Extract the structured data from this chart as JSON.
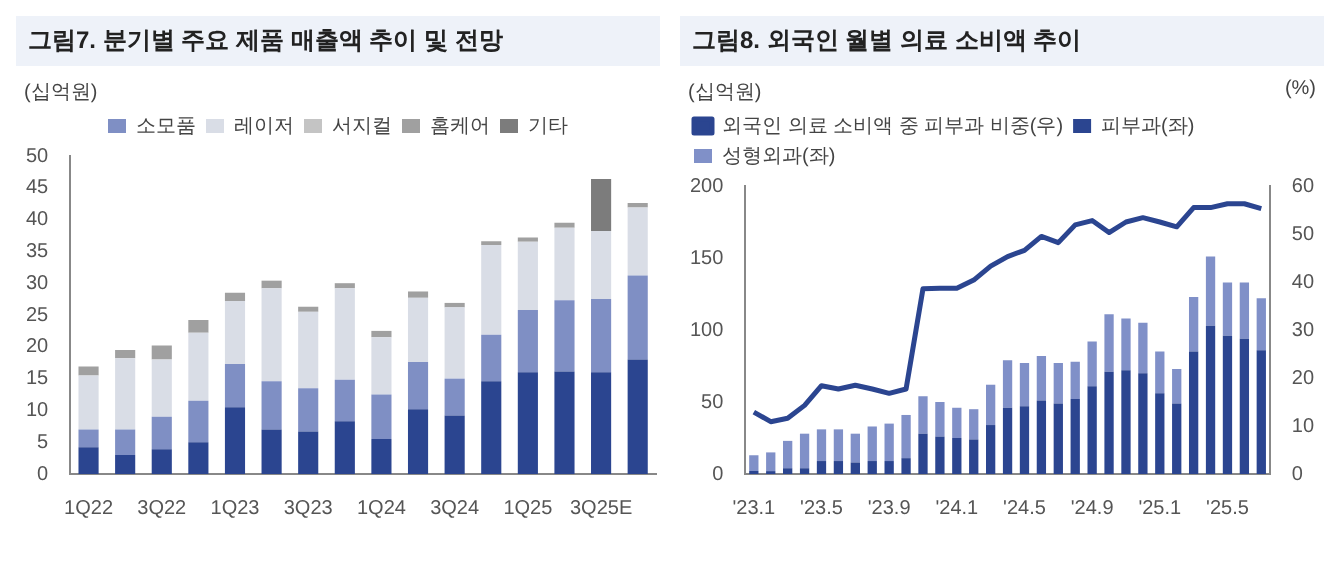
{
  "chart_data": [
    {
      "type": "bar",
      "title": "그림7. 분기별 주요 제품 매출액 추이 및 전망",
      "ylabel": "(십억원)",
      "stacked": true,
      "legend": "top",
      "grid": false,
      "categories": [
        "1Q22",
        null,
        "3Q22",
        null,
        "1Q23",
        null,
        "3Q23",
        null,
        "1Q24",
        null,
        "3Q24",
        null,
        "1Q25",
        null,
        "3Q25E",
        null
      ],
      "ylim": [
        0,
        50
      ],
      "yticks": [
        0,
        5,
        10,
        15,
        20,
        25,
        30,
        35,
        40,
        45,
        50
      ],
      "series": [
        {
          "color": "#2b4590",
          "values": [
            4.2,
            3.0,
            3.9,
            5.0,
            10.5,
            7.0,
            6.7,
            8.3,
            5.5,
            10.2,
            9.2,
            14.6,
            16.0,
            16.1,
            16.0,
            18.0
          ]
        },
        {
          "name": "소모품",
          "color": "#7f8fc4",
          "values": [
            2.8,
            4.0,
            5.1,
            6.5,
            6.8,
            7.6,
            6.8,
            6.5,
            7.0,
            7.4,
            5.8,
            7.3,
            9.8,
            11.2,
            11.5,
            13.2
          ]
        },
        {
          "name": "레이저",
          "color": "#d9dde6",
          "values": [
            8.5,
            11.2,
            9.0,
            10.7,
            9.9,
            14.6,
            12.0,
            14.4,
            9.0,
            10.1,
            11.2,
            14.1,
            10.7,
            11.4,
            10.7,
            10.7
          ]
        },
        {
          "name": "서지컬",
          "color": "#c4c4c4",
          "values": [
            null,
            null,
            null,
            null,
            null,
            null,
            null,
            null,
            null,
            null,
            null,
            null,
            null,
            null,
            null,
            null
          ]
        },
        {
          "name": "홈케어",
          "color": "#a0a0a0",
          "values": [
            1.4,
            1.3,
            2.2,
            2.0,
            1.3,
            1.2,
            0.8,
            0.8,
            1.0,
            1.0,
            0.7,
            0.6,
            0.7,
            0.8,
            0,
            0.7
          ]
        },
        {
          "name": "기타",
          "color": "#7c7c7c",
          "values": [
            0,
            0,
            0,
            0,
            0,
            0,
            0,
            0,
            0,
            0,
            0,
            0,
            0,
            0,
            8.2,
            0
          ]
        }
      ]
    },
    {
      "type": "bar",
      "title": "그림8. 외국인 월별 의료 소비액 추이",
      "ylabel": "(십억원)",
      "y2label": "(%)",
      "stacked": true,
      "legend": "top left",
      "grid": false,
      "marker": "none",
      "categories": [
        "'23.1",
        null,
        null,
        null,
        "'23.5",
        null,
        null,
        null,
        "'23.9",
        null,
        null,
        null,
        "'24.1",
        null,
        null,
        null,
        "'24.5",
        null,
        null,
        null,
        "'24.9",
        null,
        null,
        null,
        "'25.1",
        null,
        null,
        null,
        "'25.5",
        null,
        null
      ],
      "ylim": [
        0,
        200
      ],
      "yticks": [
        0,
        50,
        100,
        150,
        200
      ],
      "y2lim": [
        0,
        60
      ],
      "y2ticks": [
        0,
        10,
        20,
        30,
        40,
        50,
        60
      ],
      "series": [
        {
          "name": "피부과(좌)",
          "color": "#2b4590",
          "values": [
            2,
            2,
            4,
            4,
            9,
            9,
            8,
            9,
            9,
            11,
            28,
            26,
            25,
            24,
            34,
            46,
            47,
            51,
            49,
            52,
            61,
            71,
            72,
            70,
            56,
            49,
            85,
            103,
            96,
            94,
            86
          ]
        },
        {
          "name": "성형외과(좌)",
          "color": "#8090c8",
          "values": [
            11,
            13,
            19,
            24,
            22,
            22,
            20,
            24,
            26,
            30,
            26,
            24,
            21,
            21,
            28,
            33,
            30,
            31,
            28,
            26,
            31,
            40,
            36,
            35,
            29,
            24,
            38,
            48,
            37,
            39,
            36
          ]
        },
        {
          "type": "line",
          "axis": "y2",
          "name": "외국인 의료 소비액 중 피부과 비중(우)",
          "color": "#2b4590",
          "values": [
            12.9,
            10.9,
            11.6,
            14.3,
            18.4,
            17.7,
            18.5,
            17.7,
            16.8,
            17.7,
            38.6,
            38.7,
            38.7,
            40.4,
            43.3,
            45.3,
            46.6,
            49.5,
            48.2,
            51.9,
            52.8,
            50.3,
            52.5,
            53.4,
            52.5,
            51.5,
            55.5,
            55.5,
            56.3,
            56.3,
            55.3
          ]
        }
      ]
    }
  ]
}
